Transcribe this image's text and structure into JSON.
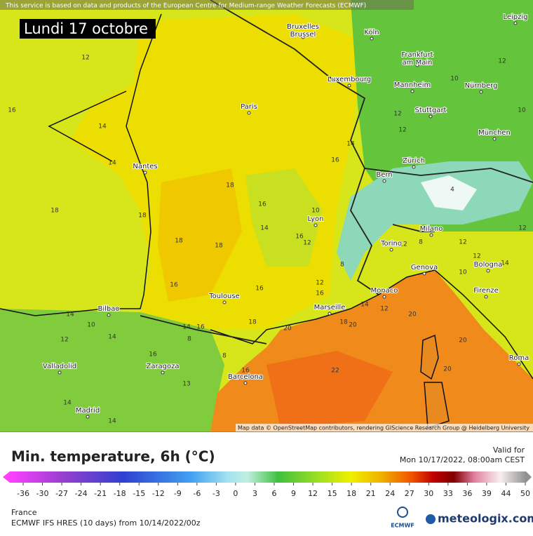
{
  "header": {
    "attribution": "This service is based on data and products of the European Centre for Medium-range Weather Forecasts (ECMWF)",
    "date": "Lundi 17 octobre"
  },
  "map": {
    "cities": [
      "Bruxelles\nBrussel",
      "Köln",
      "Leipzig",
      "Frankfurt\nam Main",
      "Luxembourg",
      "Mannheim",
      "Nürnberg",
      "Paris",
      "Stuttgart",
      "München",
      "Nantes",
      "Zürich",
      "Bern",
      "Lyon",
      "Milano",
      "Torino",
      "Genova",
      "Bologna",
      "Monaco",
      "Marseille",
      "Toulouse",
      "Bilbao",
      "Firenze",
      "Zaragoza",
      "Barcelona",
      "Valladolid",
      "Madrid",
      "Roma"
    ],
    "contour_labels": [
      12,
      16,
      14,
      14,
      18,
      18,
      18,
      18,
      18,
      16,
      14,
      16,
      12,
      16,
      16,
      12,
      16,
      14,
      20,
      18,
      18,
      20,
      14,
      10,
      12,
      14,
      16,
      14,
      16,
      8,
      8,
      16,
      13,
      22,
      20,
      20,
      20,
      12,
      8,
      12,
      12,
      10,
      14,
      12,
      10,
      10,
      12,
      12,
      12,
      14,
      16,
      10,
      8,
      12,
      14,
      14,
      4
    ],
    "credit": "Map data © OpenStreetMap contributors, rendering GIScience Research Group @ Heidelberg University"
  },
  "legend": {
    "title": "Min. temperature, 6h (°C)",
    "valid_label": "Valid for",
    "valid_time": "Mon 10/17/2022, 08:00am CEST",
    "ticks": [
      -36,
      -30,
      -27,
      -24,
      -21,
      -18,
      -15,
      -12,
      -9,
      -6,
      -3,
      0,
      3,
      6,
      9,
      12,
      15,
      18,
      21,
      24,
      27,
      30,
      33,
      36,
      39,
      44,
      50
    ]
  },
  "footer": {
    "region": "France",
    "model": "ECMWF IFS HRES (10 days) from 10/14/2022/00z",
    "ecmwf": "ECMWF",
    "brand": "meteologix.com"
  }
}
